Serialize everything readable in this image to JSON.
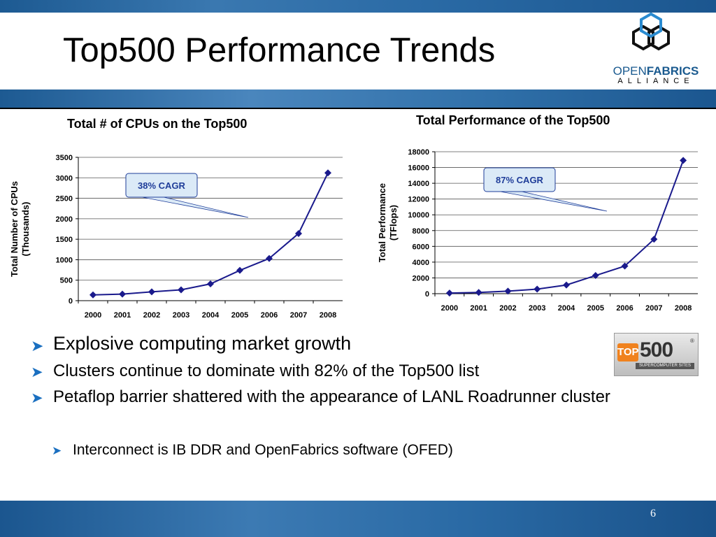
{
  "slide": {
    "title": "Top500 Performance Trends",
    "page_number": "6"
  },
  "logo": {
    "text_open": "OPEN",
    "text_fabrics": "FABRICS",
    "text_alliance": "ALLIANCE"
  },
  "top500_logo": {
    "top": "TOP",
    "num": "500",
    "sub": "SUPERCOMPUTER SITES",
    "reg": "®"
  },
  "bullets": [
    "Explosive computing market growth",
    "Clusters continue to dominate with 82% of the Top500 list",
    "Petaflop barrier shattered with the appearance of LANL Roadrunner cluster"
  ],
  "sub_bullets": [
    "Interconnect is IB DDR and OpenFabrics software (OFED)"
  ],
  "colors": {
    "series_line": "#1a1a8c",
    "callout_fill": "#dbeaf7",
    "callout_text": "#1f3d99",
    "bullet_arrow": "#1a6fc0"
  },
  "chart_data": [
    {
      "type": "line",
      "title": "Total # of CPUs on the Top500",
      "ylabel": "Total Number of CPUs (Thousands)",
      "xlabel": "",
      "categories": [
        "2000",
        "2001",
        "2002",
        "2003",
        "2004",
        "2005",
        "2006",
        "2007",
        "2008"
      ],
      "series": [
        {
          "values": [
            140,
            160,
            215,
            265,
            410,
            740,
            1030,
            1640,
            3120
          ]
        }
      ],
      "ylim": [
        0,
        3500
      ],
      "yticks": [
        0,
        500,
        1000,
        1500,
        2000,
        2500,
        3000,
        3500
      ],
      "grid": true,
      "legend": "none",
      "annotation": "38% CAGR"
    },
    {
      "type": "line",
      "title": "Total Performance of the Top500",
      "ylabel": "Total Performance (TFlops)",
      "xlabel": "",
      "categories": [
        "2000",
        "2001",
        "2002",
        "2003",
        "2004",
        "2005",
        "2006",
        "2007",
        "2008"
      ],
      "series": [
        {
          "values": [
            80,
            160,
            320,
            580,
            1100,
            2300,
            3500,
            6900,
            16900
          ]
        }
      ],
      "ylim": [
        0,
        18000
      ],
      "yticks": [
        0,
        2000,
        4000,
        6000,
        8000,
        10000,
        12000,
        14000,
        16000,
        18000
      ],
      "grid": true,
      "legend": "none",
      "annotation": "87% CAGR"
    }
  ]
}
